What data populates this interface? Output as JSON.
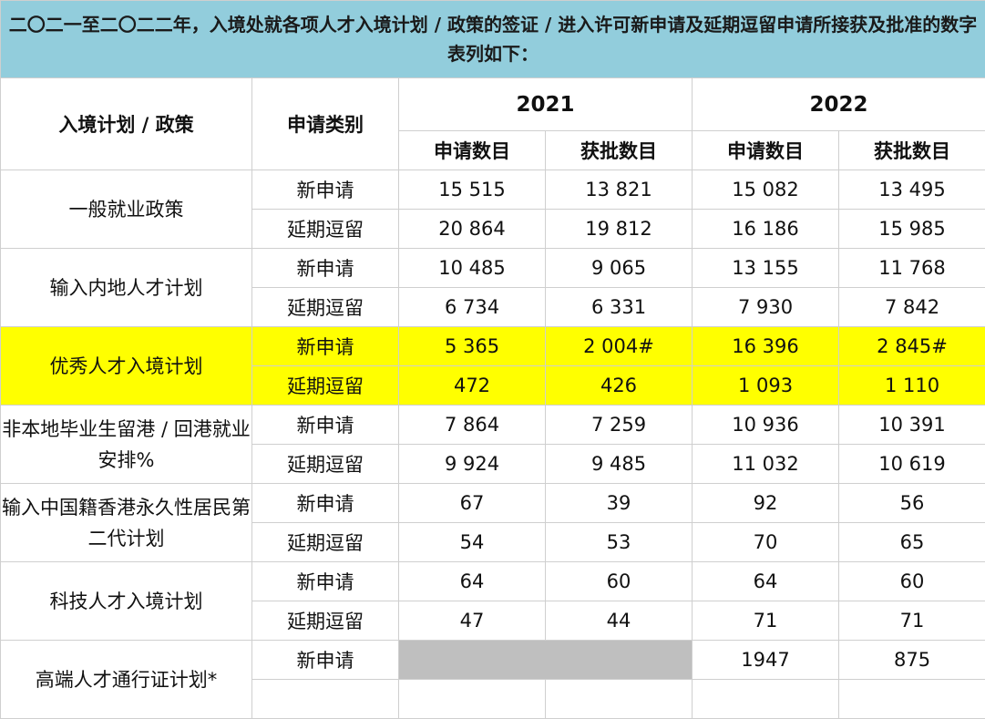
{
  "title": "二〇二一至二〇二二年，入境处就各项人才入境计划 / 政策的签证 / 进入许可新申请及延期逗留申请所接获及批准的数字表列如下：",
  "header": {
    "scheme_label": "入境计划 / 政策",
    "category_label": "申请类别",
    "years": [
      "2021",
      "2022"
    ],
    "received_label": "申请数目",
    "approved_label": "获批数目"
  },
  "highlight_color": "#ffff00",
  "title_bg_color": "#92cddc",
  "rows": [
    {
      "scheme": "一般就业政策",
      "highlight": false,
      "entries": [
        {
          "category": "新申请",
          "v2021_received": "15 515",
          "v2021_approved": "13 821",
          "v2022_received": "15 082",
          "v2022_approved": "13 495"
        },
        {
          "category": "延期逗留",
          "v2021_received": "20 864",
          "v2021_approved": "19 812",
          "v2022_received": "16 186",
          "v2022_approved": "15 985"
        }
      ]
    },
    {
      "scheme": "输入内地人才计划",
      "highlight": false,
      "entries": [
        {
          "category": "新申请",
          "v2021_received": "10 485",
          "v2021_approved": "9 065",
          "v2022_received": "13 155",
          "v2022_approved": "11 768"
        },
        {
          "category": "延期逗留",
          "v2021_received": "6 734",
          "v2021_approved": "6 331",
          "v2022_received": "7 930",
          "v2022_approved": "7 842"
        }
      ]
    },
    {
      "scheme": "优秀人才入境计划",
      "highlight": true,
      "entries": [
        {
          "category": "新申请",
          "v2021_received": "5 365",
          "v2021_approved": "2 004#",
          "v2022_received": "16 396",
          "v2022_approved": "2 845#"
        },
        {
          "category": "延期逗留",
          "v2021_received": "472",
          "v2021_approved": "426",
          "v2022_received": "1 093",
          "v2022_approved": "1 110"
        }
      ]
    },
    {
      "scheme": "非本地毕业生留港 / 回港就业安排%",
      "highlight": false,
      "entries": [
        {
          "category": "新申请",
          "v2021_received": "7 864",
          "v2021_approved": "7 259",
          "v2022_received": "10 936",
          "v2022_approved": "10 391"
        },
        {
          "category": "延期逗留",
          "v2021_received": "9 924",
          "v2021_approved": "9 485",
          "v2022_received": "11 032",
          "v2022_approved": "10 619"
        }
      ]
    },
    {
      "scheme": "输入中国籍香港永久性居民第二代计划",
      "highlight": false,
      "entries": [
        {
          "category": "新申请",
          "v2021_received": "67",
          "v2021_approved": "39",
          "v2022_received": "92",
          "v2022_approved": "56"
        },
        {
          "category": "延期逗留",
          "v2021_received": "54",
          "v2021_approved": "53",
          "v2022_received": "70",
          "v2022_approved": "65"
        }
      ]
    },
    {
      "scheme": "科技人才入境计划",
      "highlight": false,
      "entries": [
        {
          "category": "新申请",
          "v2021_received": "64",
          "v2021_approved": "60",
          "v2022_received": "64",
          "v2022_approved": "60"
        },
        {
          "category": "延期逗留",
          "v2021_received": "47",
          "v2021_approved": "44",
          "v2022_received": "71",
          "v2022_approved": "71"
        }
      ]
    }
  ],
  "last_row": {
    "scheme": "高端人才通行证计划*",
    "category": "新申请",
    "v2022_received": "1947",
    "v2022_approved": "875"
  }
}
